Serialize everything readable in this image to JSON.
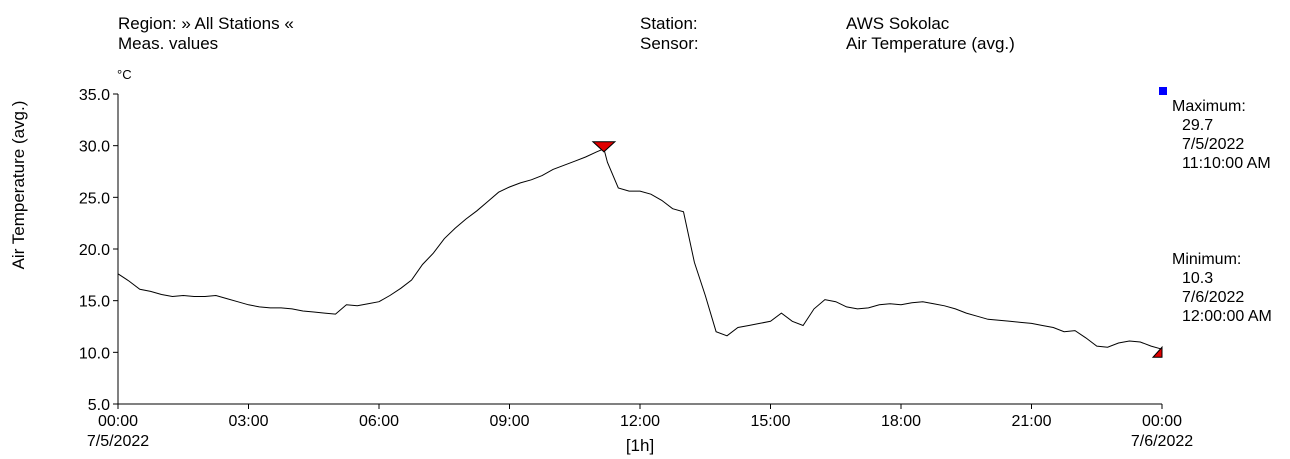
{
  "header": {
    "region": "Region: » All Stations «",
    "values_type": "Meas. values",
    "station_label": "Station:",
    "station_value": "AWS Sokolac",
    "sensor_label": "Sensor:",
    "sensor_value": "Air Temperature (avg.)"
  },
  "stats": {
    "maximum": {
      "label": "Maximum:",
      "value": "29.7",
      "date": "7/5/2022",
      "time": "11:10:00 AM",
      "marker_color": "#0000ff"
    },
    "minimum": {
      "label": "Minimum:",
      "value": "10.3",
      "date": "7/6/2022",
      "time": "12:00:00 AM"
    }
  },
  "colors": {
    "line": "#000000",
    "extreme_marker": "#e00000"
  },
  "chart_data": {
    "type": "line",
    "ylabel": "Air Temperature (avg.)",
    "yunit": "°C",
    "ylim": [
      5.0,
      35.0
    ],
    "yticks": [
      "35.0",
      "30.0",
      "25.0",
      "20.0",
      "15.0",
      "10.0",
      "5.0"
    ],
    "xlim": [
      0,
      24
    ],
    "xticks": [
      "00:00",
      "03:00",
      "06:00",
      "09:00",
      "12:00",
      "15:00",
      "18:00",
      "21:00",
      "00:00"
    ],
    "xtick_dates": [
      "7/5/2022",
      "7/6/2022"
    ],
    "x_interval_label": "[1h]",
    "grid": false,
    "series": [
      {
        "x": [
          0,
          0.25,
          0.5,
          0.75,
          1.0,
          1.25,
          1.5,
          1.75,
          2.0,
          2.25,
          2.5,
          2.75,
          3.0,
          3.25,
          3.5,
          3.75,
          4.0,
          4.25,
          4.5,
          4.75,
          5.0,
          5.25,
          5.5,
          5.75,
          6.0,
          6.25,
          6.5,
          6.75,
          7.0,
          7.25,
          7.5,
          7.75,
          8.0,
          8.25,
          8.5,
          8.75,
          9.0,
          9.25,
          9.5,
          9.75,
          10.0,
          10.25,
          10.5,
          10.75,
          11.0,
          11.17,
          11.25,
          11.5,
          11.75,
          12.0,
          12.25,
          12.5,
          12.75,
          13.0,
          13.25,
          13.5,
          13.75,
          14.0,
          14.25,
          14.5,
          14.75,
          15.0,
          15.25,
          15.5,
          15.75,
          16.0,
          16.25,
          16.5,
          16.75,
          17.0,
          17.25,
          17.5,
          17.75,
          18.0,
          18.25,
          18.5,
          18.75,
          19.0,
          19.25,
          19.5,
          19.75,
          20.0,
          20.25,
          20.5,
          20.75,
          21.0,
          21.25,
          21.5,
          21.75,
          22.0,
          22.25,
          22.5,
          22.75,
          23.0,
          23.25,
          23.5,
          23.75,
          24.0
        ],
        "y": [
          17.6,
          16.9,
          16.1,
          15.9,
          15.6,
          15.4,
          15.5,
          15.4,
          15.4,
          15.5,
          15.2,
          14.9,
          14.6,
          14.4,
          14.3,
          14.3,
          14.2,
          14.0,
          13.9,
          13.8,
          13.7,
          14.6,
          14.5,
          14.7,
          14.9,
          15.5,
          16.2,
          17.0,
          18.5,
          19.6,
          21.0,
          22.0,
          22.9,
          23.7,
          24.6,
          25.5,
          26.0,
          26.4,
          26.7,
          27.1,
          27.7,
          28.1,
          28.5,
          28.9,
          29.4,
          29.7,
          28.4,
          25.9,
          25.6,
          25.6,
          25.3,
          24.7,
          23.9,
          23.6,
          18.7,
          15.5,
          12.0,
          11.6,
          12.4,
          12.6,
          12.8,
          13.0,
          13.8,
          13.0,
          12.6,
          14.2,
          15.1,
          14.9,
          14.4,
          14.2,
          14.3,
          14.6,
          14.7,
          14.6,
          14.8,
          14.9,
          14.7,
          14.5,
          14.2,
          13.8,
          13.5,
          13.2,
          13.1,
          13.0,
          12.9,
          12.8,
          12.6,
          12.4,
          12.0,
          12.1,
          11.4,
          10.6,
          10.5,
          10.9,
          11.1,
          11.0,
          10.6,
          10.3
        ]
      }
    ],
    "max_point": {
      "x": 11.17,
      "y": 29.7
    },
    "min_point": {
      "x": 24.0,
      "y": 10.3
    }
  }
}
